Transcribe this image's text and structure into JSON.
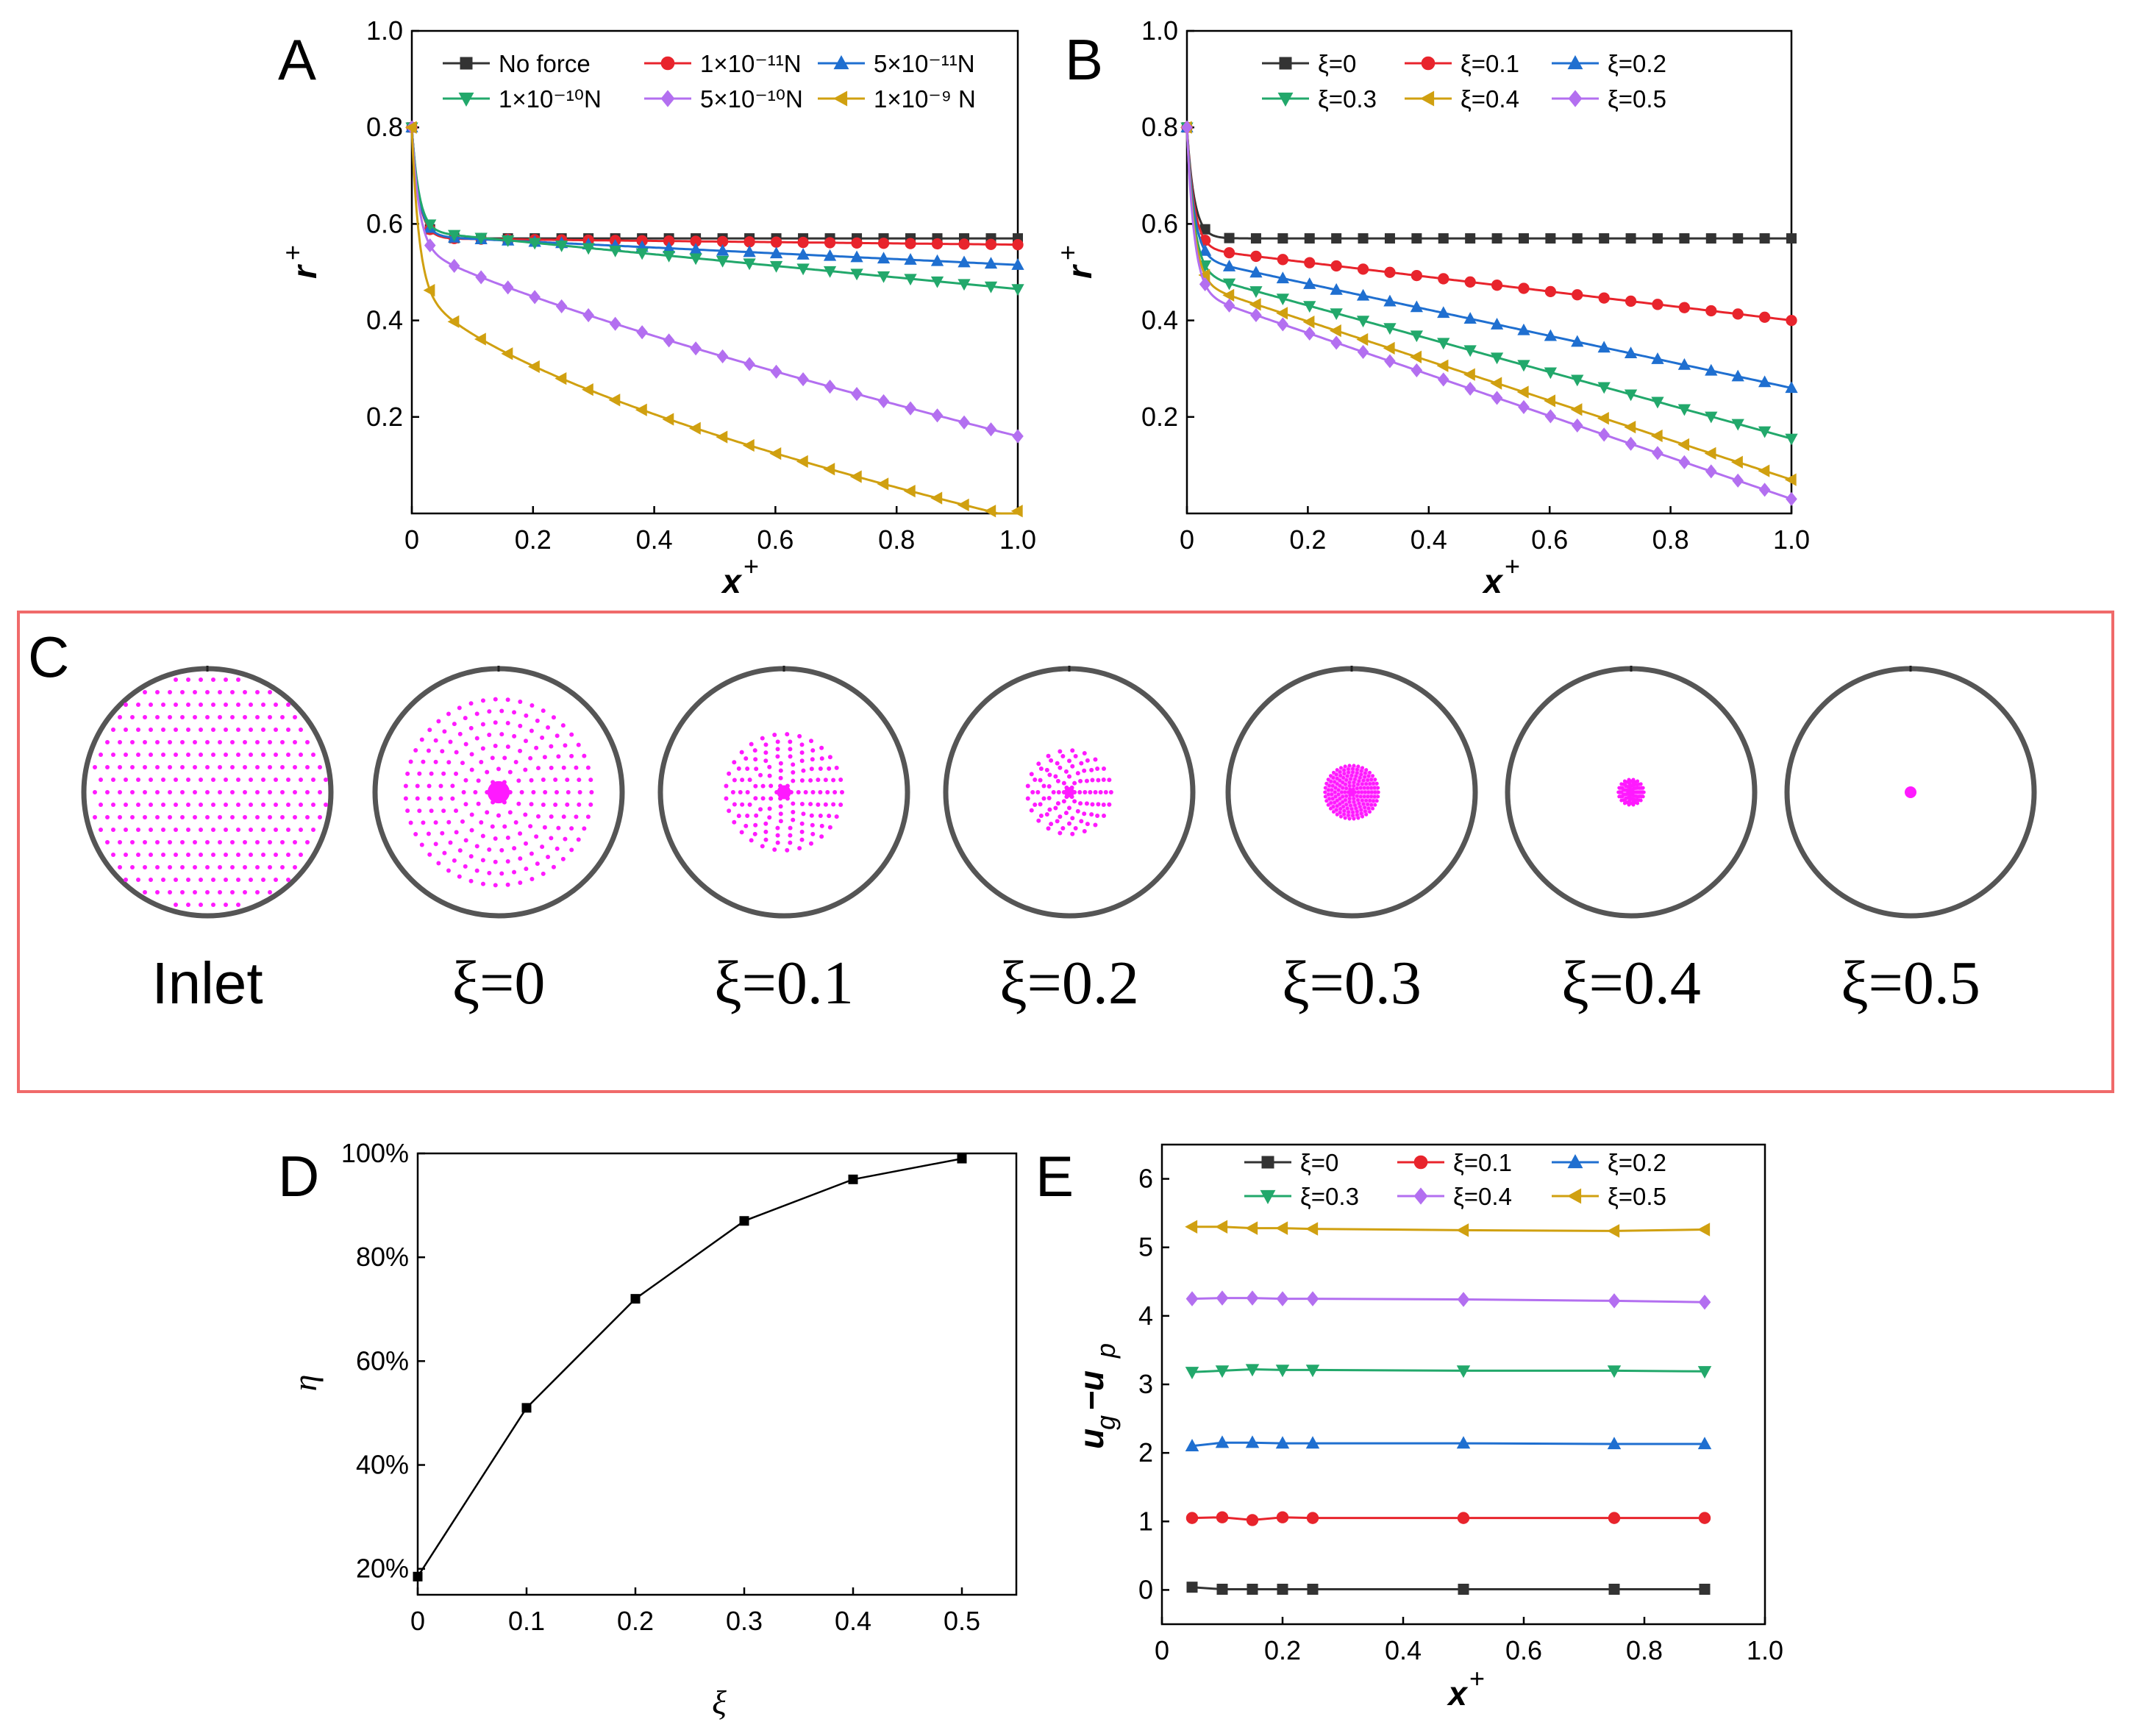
{
  "colors": {
    "black": "#333333",
    "red": "#e8242c",
    "blue": "#1f6fd0",
    "green": "#22a86b",
    "purple": "#b36ff0",
    "gold": "#d0a010",
    "magenta": "#ff1aff",
    "frame": "#f06a6a"
  },
  "chart_data": [
    {
      "id": "A",
      "panel_label": "A",
      "type": "line",
      "xlabel": "x",
      "xlabel_sup": "+",
      "ylabel": "r",
      "ylabel_sup": "+",
      "xlim": [
        0,
        1.0
      ],
      "ylim": [
        0,
        1.0
      ],
      "x_ticks": [
        "0",
        "0.2",
        "0.4",
        "0.6",
        "0.8",
        "1.0"
      ],
      "y_ticks": [
        "0.2",
        "0.4",
        "0.6",
        "0.8",
        "1.0"
      ],
      "legend_position": "top",
      "series": [
        {
          "name": "No force",
          "color": "black",
          "marker": "square",
          "r0": 0.8,
          "a": 0.57,
          "b": 0.0
        },
        {
          "name": "1×10⁻¹¹N",
          "color": "red",
          "marker": "circle",
          "r0": 0.8,
          "a": 0.57,
          "b": 0.013
        },
        {
          "name": "5×10⁻¹¹N",
          "color": "blue",
          "marker": "triangle-up",
          "r0": 0.8,
          "a": 0.575,
          "b": 0.06
        },
        {
          "name": "1×10⁻¹⁰N",
          "color": "green",
          "marker": "triangle-down",
          "r0": 0.8,
          "a": 0.585,
          "b": 0.12
        },
        {
          "name": "5×10⁻¹⁰N",
          "color": "purple",
          "marker": "diamond",
          "r0": 0.8,
          "a": 0.56,
          "b": 0.4,
          "p": 0.8
        },
        {
          "name": "1×10⁻⁹ N",
          "color": "gold",
          "marker": "triangle-left",
          "r0": 0.8,
          "a": 0.5,
          "b": 0.51,
          "p": 0.6
        }
      ]
    },
    {
      "id": "B",
      "panel_label": "B",
      "type": "line",
      "xlabel": "x",
      "xlabel_sup": "+",
      "ylabel": "r",
      "ylabel_sup": "+",
      "xlim": [
        0,
        1.0
      ],
      "ylim": [
        0,
        1.0
      ],
      "x_ticks": [
        "0",
        "0.2",
        "0.4",
        "0.6",
        "0.8",
        "1.0"
      ],
      "y_ticks": [
        "0.2",
        "0.4",
        "0.6",
        "0.8",
        "1.0"
      ],
      "legend_position": "top",
      "series": [
        {
          "name": "ξ=0",
          "color": "black",
          "marker": "square",
          "r0": 0.8,
          "a": 0.57,
          "b": 0.0
        },
        {
          "name": "ξ=0.1",
          "color": "red",
          "marker": "circle",
          "r0": 0.8,
          "a": 0.55,
          "b": 0.15
        },
        {
          "name": "ξ=0.2",
          "color": "blue",
          "marker": "triangle-up",
          "r0": 0.8,
          "a": 0.53,
          "b": 0.27
        },
        {
          "name": "ξ=0.3",
          "color": "green",
          "marker": "triangle-down",
          "r0": 0.8,
          "a": 0.5,
          "b": 0.345
        },
        {
          "name": "ξ=0.4",
          "color": "gold",
          "marker": "triangle-left",
          "r0": 0.8,
          "a": 0.48,
          "b": 0.41
        },
        {
          "name": "ξ=0.5",
          "color": "purple",
          "marker": "diamond",
          "r0": 0.8,
          "a": 0.46,
          "b": 0.43
        }
      ]
    },
    {
      "id": "D",
      "panel_label": "D",
      "type": "line",
      "xlabel": "ξ",
      "ylabel": "η",
      "xlim": [
        0,
        0.55
      ],
      "ylim": [
        15,
        100
      ],
      "x_ticks": [
        "0",
        "0.1",
        "0.2",
        "0.3",
        "0.4",
        "0.5"
      ],
      "y_ticks": [
        "20%",
        "40%",
        "60%",
        "80%",
        "100%"
      ],
      "x": [
        0,
        0.1,
        0.2,
        0.3,
        0.4,
        0.5
      ],
      "values": [
        18.5,
        51,
        72,
        87,
        95,
        99
      ]
    },
    {
      "id": "E",
      "panel_label": "E",
      "type": "line",
      "xlabel": "x",
      "xlabel_sup": "+",
      "ylabel": "u",
      "ylabel_sub_g": "g",
      "ylabel_dash": "−u",
      "ylabel_sub_p": "p",
      "xlim": [
        0,
        1.0
      ],
      "ylim": [
        -0.5,
        6.5
      ],
      "x_ticks": [
        "0",
        "0.2",
        "0.4",
        "0.6",
        "0.8",
        "1.0"
      ],
      "y_ticks": [
        "0",
        "1",
        "2",
        "3",
        "4",
        "5",
        "6"
      ],
      "legend_position": "top",
      "x": [
        0.05,
        0.1,
        0.15,
        0.2,
        0.25,
        0.5,
        0.75,
        0.9
      ],
      "series": [
        {
          "name": "ξ=0",
          "color": "black",
          "marker": "square",
          "values": [
            0.04,
            0.01,
            0.01,
            0.01,
            0.01,
            0.01,
            0.01,
            0.01
          ]
        },
        {
          "name": "ξ=0.1",
          "color": "red",
          "marker": "circle",
          "values": [
            1.05,
            1.06,
            1.02,
            1.06,
            1.05,
            1.05,
            1.05,
            1.05
          ]
        },
        {
          "name": "ξ=0.2",
          "color": "blue",
          "marker": "triangle-up",
          "values": [
            2.1,
            2.15,
            2.15,
            2.14,
            2.14,
            2.14,
            2.13,
            2.13
          ]
        },
        {
          "name": "ξ=0.3",
          "color": "green",
          "marker": "triangle-down",
          "values": [
            3.18,
            3.2,
            3.22,
            3.21,
            3.21,
            3.2,
            3.2,
            3.19
          ]
        },
        {
          "name": "ξ=0.4",
          "color": "purple",
          "marker": "diamond",
          "values": [
            4.25,
            4.26,
            4.26,
            4.25,
            4.25,
            4.24,
            4.22,
            4.2
          ]
        },
        {
          "name": "ξ=0.5",
          "color": "gold",
          "marker": "triangle-left",
          "values": [
            5.3,
            5.3,
            5.28,
            5.28,
            5.27,
            5.25,
            5.24,
            5.26
          ]
        }
      ]
    }
  ],
  "panel_c": {
    "panel_label": "C",
    "circles": [
      {
        "label": "Inlet",
        "spread": 1.0
      },
      {
        "label": "ξ=0",
        "spread": 0.8
      },
      {
        "label": "ξ=0.1",
        "spread": 0.5
      },
      {
        "label": "ξ=0.2",
        "spread": 0.36
      },
      {
        "label": "ξ=0.3",
        "spread": 0.23
      },
      {
        "label": "ξ=0.4",
        "spread": 0.11
      },
      {
        "label": "ξ=0.5",
        "spread": 0.05
      }
    ]
  }
}
